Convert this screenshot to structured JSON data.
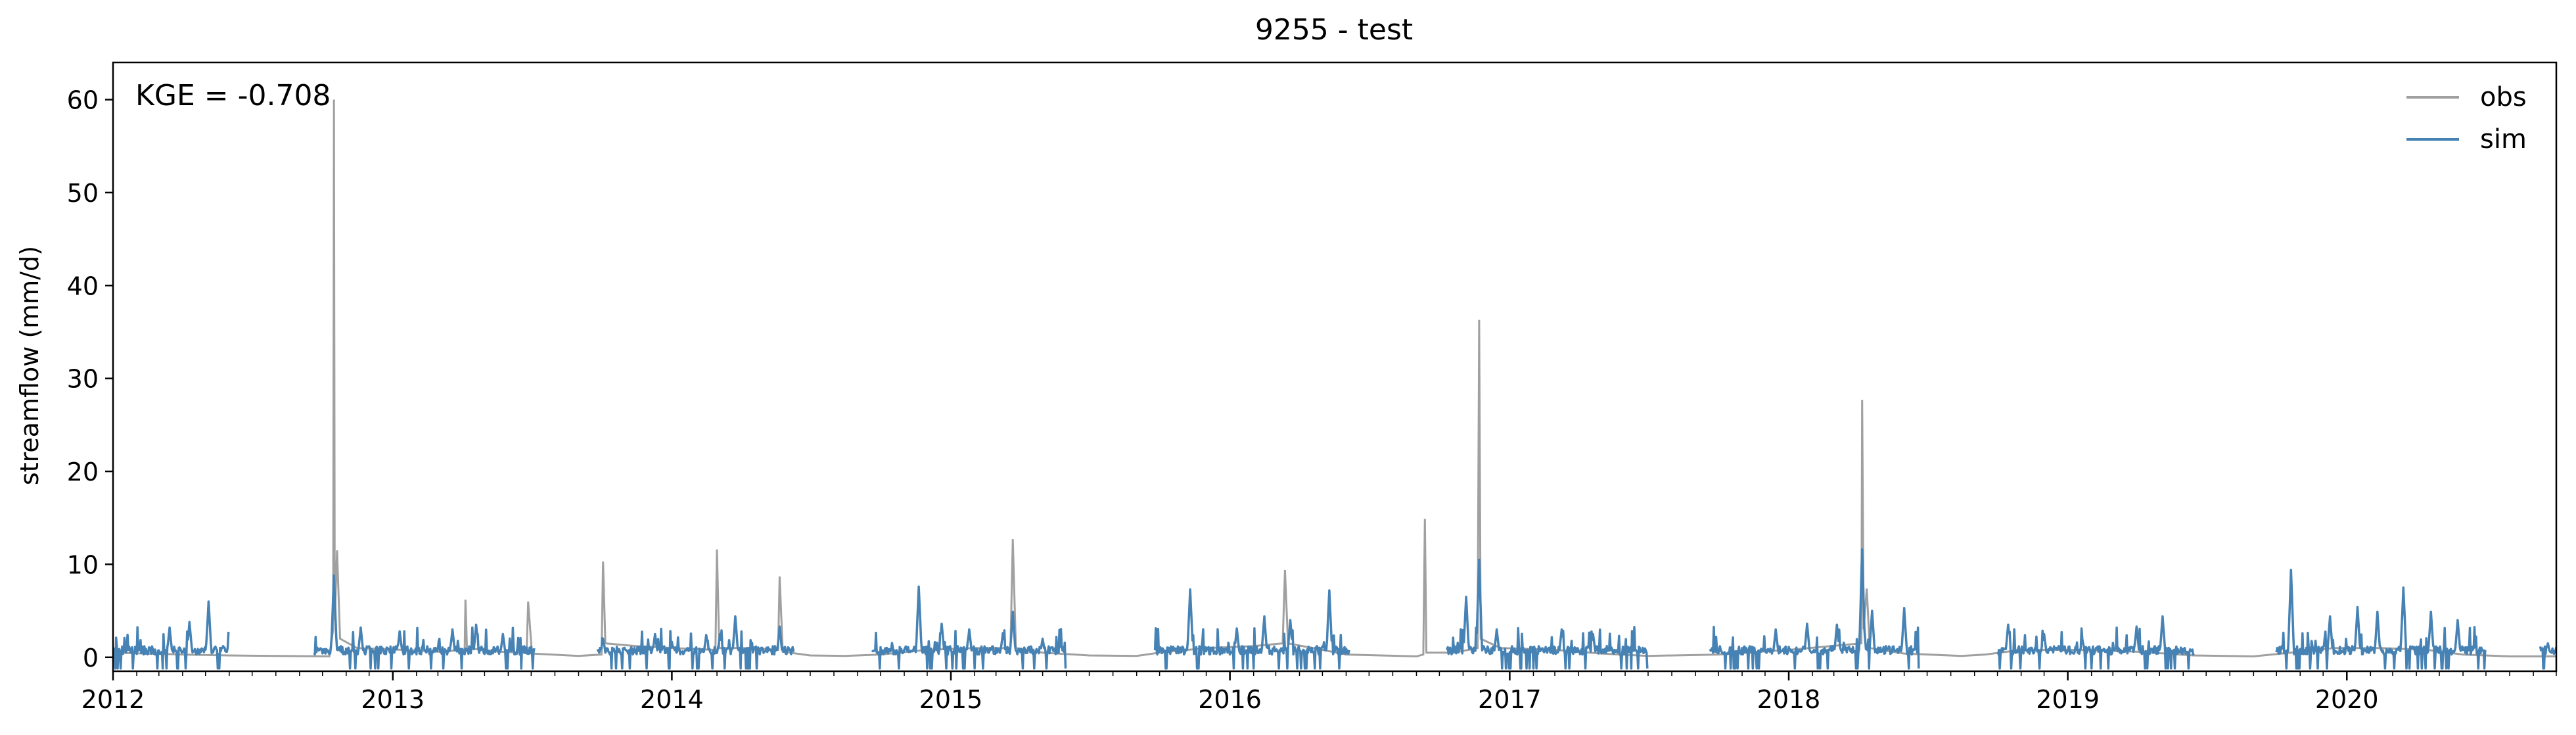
{
  "chart_data": {
    "type": "line",
    "title": "9255 - test",
    "xlabel": "",
    "ylabel": "streamflow (mm/d)",
    "xlim": [
      "2012-01-01",
      "2020-10-01"
    ],
    "ylim": [
      -1.5,
      64
    ],
    "x_ticks": [
      "2012-01-01",
      "2013-01-01",
      "2014-01-01",
      "2015-01-01",
      "2016-01-01",
      "2017-01-01",
      "2018-01-01",
      "2019-01-01",
      "2020-01-01"
    ],
    "x_tick_labels": [
      "2012",
      "2013",
      "2014",
      "2015",
      "2016",
      "2017",
      "2018",
      "2019",
      "2020"
    ],
    "y_ticks": [
      0,
      10,
      20,
      30,
      40,
      50,
      60
    ],
    "y_tick_labels": [
      "0",
      "10",
      "20",
      "30",
      "40",
      "50",
      "60"
    ],
    "annotation": "KGE = -0.708",
    "legend": {
      "placement": "upper-right"
    },
    "grid": false,
    "series": [
      {
        "name": "obs",
        "color": "#a0a0a0",
        "points": [
          [
            "2012-01-01",
            0.5
          ],
          [
            "2012-02-15",
            0.4
          ],
          [
            "2012-04-01",
            0.3
          ],
          [
            "2012-06-01",
            0.2
          ],
          [
            "2012-08-01",
            0.15
          ],
          [
            "2012-10-10",
            0.1
          ],
          [
            "2012-10-15",
            3.0
          ],
          [
            "2012-10-16",
            60.0
          ],
          [
            "2012-10-17",
            4.0
          ],
          [
            "2012-10-20",
            11.5
          ],
          [
            "2012-10-24",
            2.0
          ],
          [
            "2012-11-15",
            1.0
          ],
          [
            "2013-01-15",
            0.8
          ],
          [
            "2013-03-01",
            0.6
          ],
          [
            "2013-04-05",
            0.8
          ],
          [
            "2013-04-06",
            6.2
          ],
          [
            "2013-04-08",
            1.0
          ],
          [
            "2013-05-20",
            0.6
          ],
          [
            "2013-06-25",
            0.5
          ],
          [
            "2013-06-27",
            6.0
          ],
          [
            "2013-07-02",
            0.4
          ],
          [
            "2013-09-01",
            0.15
          ],
          [
            "2013-10-01",
            0.3
          ],
          [
            "2013-10-03",
            10.3
          ],
          [
            "2013-10-06",
            1.5
          ],
          [
            "2013-11-15",
            1.2
          ],
          [
            "2014-01-01",
            1.0
          ],
          [
            "2014-02-27",
            0.8
          ],
          [
            "2014-03-01",
            11.6
          ],
          [
            "2014-03-04",
            1.0
          ],
          [
            "2014-04-15",
            1.0
          ],
          [
            "2014-05-20",
            0.8
          ],
          [
            "2014-05-22",
            8.7
          ],
          [
            "2014-05-26",
            0.6
          ],
          [
            "2014-07-01",
            0.2
          ],
          [
            "2014-08-15",
            0.15
          ],
          [
            "2014-10-01",
            0.3
          ],
          [
            "2014-12-01",
            0.8
          ],
          [
            "2015-02-01",
            1.0
          ],
          [
            "2015-03-20",
            1.0
          ],
          [
            "2015-03-23",
            12.7
          ],
          [
            "2015-03-27",
            1.0
          ],
          [
            "2015-05-01",
            0.5
          ],
          [
            "2015-07-01",
            0.2
          ],
          [
            "2015-09-01",
            0.15
          ],
          [
            "2015-10-01",
            0.5
          ],
          [
            "2015-12-01",
            1.0
          ],
          [
            "2016-02-01",
            1.2
          ],
          [
            "2016-03-10",
            1.5
          ],
          [
            "2016-03-13",
            9.4
          ],
          [
            "2016-03-17",
            1.5
          ],
          [
            "2016-05-01",
            0.8
          ],
          [
            "2016-06-01",
            0.3
          ],
          [
            "2016-09-01",
            0.1
          ],
          [
            "2016-09-10",
            0.3
          ],
          [
            "2016-09-12",
            14.9
          ],
          [
            "2016-09-14",
            0.5
          ],
          [
            "2016-10-20",
            0.5
          ],
          [
            "2016-11-20",
            1.0
          ],
          [
            "2016-11-22",
            36.3
          ],
          [
            "2016-11-24",
            2.0
          ],
          [
            "2016-12-20",
            1.0
          ],
          [
            "2017-03-01",
            0.8
          ],
          [
            "2017-05-01",
            0.4
          ],
          [
            "2017-07-01",
            0.15
          ],
          [
            "2017-10-01",
            0.3
          ],
          [
            "2018-01-01",
            0.8
          ],
          [
            "2018-04-06",
            1.5
          ],
          [
            "2018-04-07",
            27.7
          ],
          [
            "2018-04-09",
            3.0
          ],
          [
            "2018-04-13",
            7.4
          ],
          [
            "2018-04-17",
            1.0
          ],
          [
            "2018-06-01",
            0.4
          ],
          [
            "2018-08-15",
            0.15
          ],
          [
            "2018-09-15",
            0.3
          ],
          [
            "2018-11-01",
            0.8
          ],
          [
            "2019-01-15",
            0.8
          ],
          [
            "2019-04-01",
            0.6
          ],
          [
            "2019-06-15",
            0.2
          ],
          [
            "2019-09-01",
            0.1
          ],
          [
            "2019-10-20",
            0.5
          ],
          [
            "2019-12-15",
            1.0
          ],
          [
            "2020-02-15",
            1.0
          ],
          [
            "2020-04-15",
            0.8
          ],
          [
            "2020-06-01",
            0.3
          ],
          [
            "2020-08-01",
            0.1
          ],
          [
            "2020-10-01",
            0.1
          ]
        ]
      },
      {
        "name": "sim",
        "color": "#4682b4",
        "segments": [
          {
            "start": "2012-01-01",
            "end": "2012-05-31",
            "peaks": [
              [
                "2012-03-15",
                3.2
              ],
              [
                "2012-04-10",
                3.8
              ],
              [
                "2012-05-05",
                6.0
              ]
            ]
          },
          {
            "start": "2012-09-20",
            "end": "2013-07-05",
            "peaks": [
              [
                "2012-10-16",
                8.8
              ],
              [
                "2012-11-20",
                3.2
              ],
              [
                "2013-01-10",
                2.8
              ],
              [
                "2013-03-20",
                3.0
              ],
              [
                "2013-04-20",
                3.5
              ],
              [
                "2013-05-25",
                2.5
              ]
            ]
          },
          {
            "start": "2013-09-25",
            "end": "2014-06-10",
            "peaks": [
              [
                "2013-10-03",
                2.0
              ],
              [
                "2013-12-10",
                2.5
              ],
              [
                "2014-02-15",
                2.4
              ],
              [
                "2014-03-05",
                2.5
              ],
              [
                "2014-03-25",
                4.4
              ],
              [
                "2014-05-22",
                3.3
              ]
            ]
          },
          {
            "start": "2014-09-20",
            "end": "2015-05-31",
            "peaks": [
              [
                "2014-11-20",
                7.6
              ],
              [
                "2014-12-20",
                3.6
              ],
              [
                "2015-01-25",
                3.0
              ],
              [
                "2015-03-10",
                2.6
              ],
              [
                "2015-03-23",
                4.9
              ],
              [
                "2015-05-01",
                2.0
              ]
            ]
          },
          {
            "start": "2015-09-25",
            "end": "2016-06-05",
            "peaks": [
              [
                "2015-11-10",
                7.3
              ],
              [
                "2016-01-10",
                3.1
              ],
              [
                "2016-02-15",
                4.4
              ],
              [
                "2016-03-20",
                4.0
              ],
              [
                "2016-05-10",
                7.2
              ]
            ]
          },
          {
            "start": "2016-10-10",
            "end": "2017-06-30",
            "peaks": [
              [
                "2016-11-05",
                6.5
              ],
              [
                "2016-11-22",
                10.5
              ],
              [
                "2016-12-15",
                3.0
              ],
              [
                "2017-03-10",
                3.0
              ],
              [
                "2017-04-20",
                2.5
              ]
            ]
          },
          {
            "start": "2017-09-20",
            "end": "2018-06-20",
            "peaks": [
              [
                "2017-12-15",
                3.0
              ],
              [
                "2018-01-25",
                3.6
              ],
              [
                "2018-03-05",
                3.5
              ],
              [
                "2018-04-07",
                11.6
              ],
              [
                "2018-04-20",
                5.0
              ],
              [
                "2018-06-01",
                5.3
              ]
            ]
          },
          {
            "start": "2018-10-01",
            "end": "2019-06-15",
            "peaks": [
              [
                "2018-10-15",
                3.5
              ],
              [
                "2018-12-01",
                2.5
              ],
              [
                "2019-01-20",
                2.0
              ],
              [
                "2019-04-01",
                3.3
              ],
              [
                "2019-05-05",
                4.4
              ]
            ]
          },
          {
            "start": "2019-10-01",
            "end": "2020-06-30",
            "peaks": [
              [
                "2019-10-20",
                9.4
              ],
              [
                "2019-12-10",
                4.4
              ],
              [
                "2020-01-15",
                5.4
              ],
              [
                "2020-02-10",
                4.9
              ],
              [
                "2020-03-15",
                7.5
              ],
              [
                "2020-04-20",
                4.9
              ],
              [
                "2020-05-25",
                4.0
              ]
            ]
          },
          {
            "start": "2020-09-10",
            "end": "2020-10-01",
            "peaks": [
              [
                "2020-09-20",
                1.5
              ]
            ]
          }
        ]
      }
    ]
  }
}
